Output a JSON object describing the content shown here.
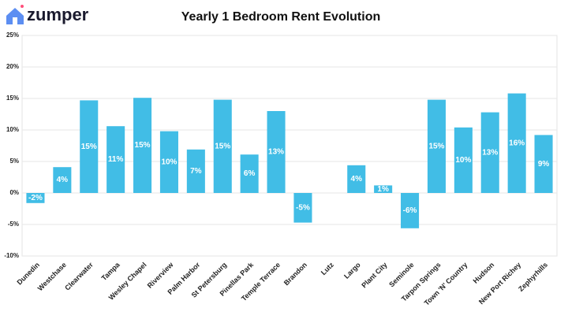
{
  "header": {
    "logo": "zumper"
  },
  "chart_data": {
    "type": "bar",
    "title": "Yearly 1 Bedroom Rent Evolution",
    "categories": [
      "Dunedin",
      "Westchase",
      "Clearwater",
      "Tampa",
      "Wesley Chapel",
      "Riverview",
      "Palm Harbor",
      "St Petersburg",
      "Pinellas Park",
      "Temple Terrace",
      "Brandon",
      "Lutz",
      "Largo",
      "Plant City",
      "Seminole",
      "Tarpon Springs",
      "Town 'N' Country",
      "Hudson",
      "New Port Richey",
      "Zephyrhills"
    ],
    "values": [
      -1.6,
      4.1,
      14.7,
      10.6,
      15.1,
      9.8,
      6.9,
      14.8,
      6.1,
      13.0,
      -4.7,
      null,
      4.4,
      1.2,
      -5.6,
      14.8,
      10.4,
      12.8,
      15.8,
      9.2
    ],
    "value_labels": [
      "-2%",
      "4%",
      "15%",
      "11%",
      "15%",
      "10%",
      "7%",
      "15%",
      "6%",
      "13%",
      "-5%",
      null,
      "4%",
      "1%",
      "-6%",
      "15%",
      "10%",
      "13%",
      "16%",
      "9%"
    ],
    "color": "#41bde6",
    "ylim": [
      -10,
      25
    ],
    "yticks": [
      {
        "value": -10,
        "label": "-10%"
      },
      {
        "value": -5,
        "label": "-5%"
      },
      {
        "value": 0,
        "label": "0%"
      },
      {
        "value": 5,
        "label": "5%"
      },
      {
        "value": 10,
        "label": "10%"
      },
      {
        "value": 15,
        "label": "15%"
      },
      {
        "value": 20,
        "label": "20%"
      },
      {
        "value": 25,
        "label": "25%"
      }
    ],
    "grid": true
  }
}
